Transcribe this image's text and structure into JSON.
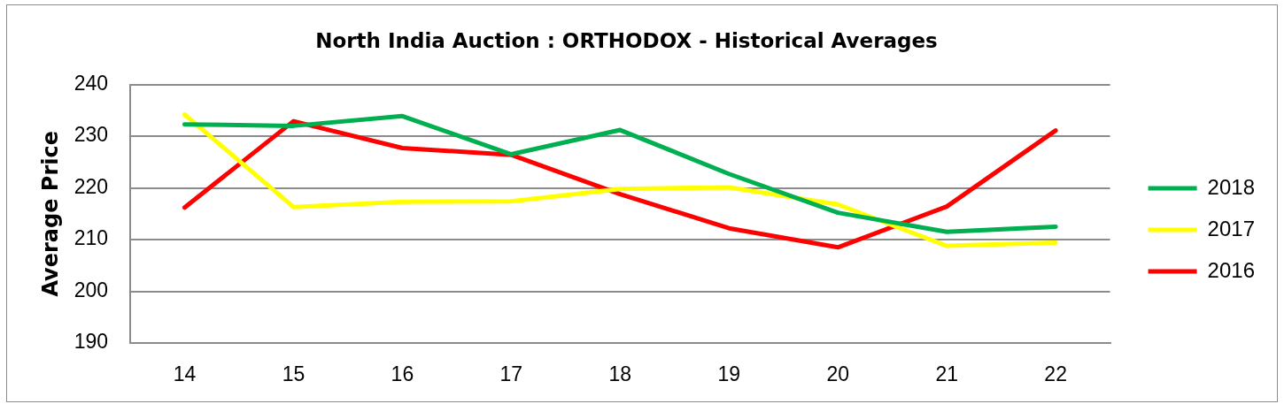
{
  "chart_data": {
    "type": "line",
    "title": "North India Auction : ORTHODOX - Historical Averages",
    "ylabel": "Average Price",
    "categories": [
      "14",
      "15",
      "16",
      "17",
      "18",
      "19",
      "20",
      "21",
      "22"
    ],
    "series": [
      {
        "name": "2018",
        "color": "#00b050",
        "values": [
          232.3,
          232.0,
          233.9,
          226.5,
          231.2,
          222.7,
          215.2,
          211.5,
          212.5
        ]
      },
      {
        "name": "2017",
        "color": "#ffff00",
        "values": [
          234.2,
          216.3,
          217.3,
          217.4,
          219.8,
          220.1,
          216.8,
          208.8,
          209.4
        ]
      },
      {
        "name": "2016",
        "color": "#ff0000",
        "values": [
          216.2,
          232.9,
          227.7,
          226.4,
          218.8,
          212.2,
          208.5,
          216.4,
          231.1
        ]
      }
    ],
    "ylim": [
      190,
      240
    ],
    "yticks": [
      190,
      200,
      210,
      220,
      230,
      240
    ],
    "grid": "y",
    "legend": "right",
    "marker": "none",
    "line_style": "solid"
  }
}
